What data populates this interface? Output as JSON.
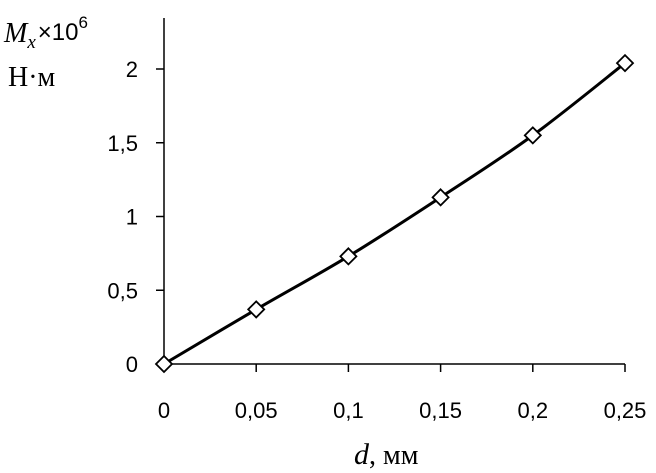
{
  "chart_data": {
    "type": "line",
    "x": [
      0,
      0.05,
      0.1,
      0.15,
      0.2,
      0.25
    ],
    "series": [
      {
        "values": [
          0,
          0.37,
          0.73,
          1.13,
          1.55,
          2.04
        ]
      }
    ],
    "x_tick_labels": [
      "0",
      "0,05",
      "0,1",
      "0,15",
      "0,2",
      "0,25"
    ],
    "y_tick_labels": [
      "0",
      "0,5",
      "1",
      "1,5",
      "2"
    ],
    "y_ticks": [
      0,
      0.5,
      1,
      1.5,
      2
    ],
    "xlim": [
      0,
      0.25
    ],
    "ylim": [
      0,
      2.4
    ],
    "ylabel": {
      "symbol": "M",
      "subscript": "x",
      "multiplier": "×10",
      "exponent": "6",
      "unit": "Н·м"
    },
    "xlabel": {
      "symbol": "d",
      "unit": ", мм"
    },
    "grid": false,
    "legend": "none",
    "marker": "diamond",
    "line_color": "#000000",
    "marker_fill": "#ffffff"
  }
}
